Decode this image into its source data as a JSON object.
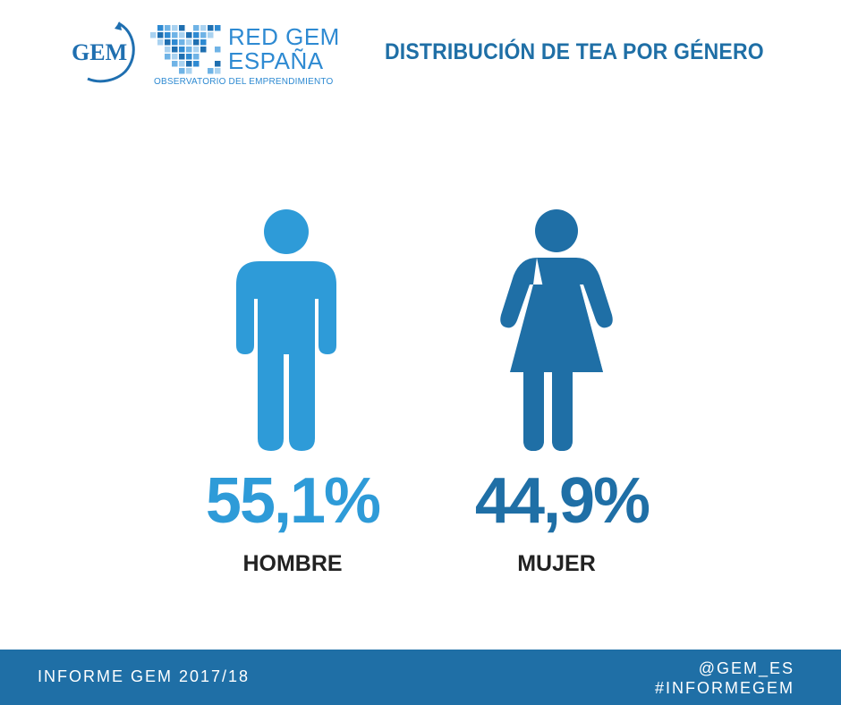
{
  "header": {
    "gem_logo_text": "GEM",
    "red_line1": "RED GEM",
    "red_line2": "ESPAÑA",
    "red_subtitle": "OBSERVATORIO DEL EMPRENDIMIENTO",
    "title": "DISTRIBUCIÓN DE TEA POR GÉNERO"
  },
  "chart_data": {
    "type": "pictogram",
    "title": "DISTRIBUCIÓN DE TEA POR GÉNERO",
    "categories": [
      "HOMBRE",
      "MUJER"
    ],
    "values": [
      55.1,
      44.9
    ],
    "value_labels": [
      "55,1%",
      "44,9%"
    ],
    "unit": "%",
    "colors": [
      "#2e9bd8",
      "#1f6fa6"
    ],
    "icons": [
      "man-icon",
      "woman-icon"
    ]
  },
  "footer": {
    "left": "INFORME GEM 2017/18",
    "right_line1": "@GEM_ES",
    "right_line2": "#INFORMEGEM"
  },
  "colors": {
    "primary_dark": "#1f6fa6",
    "primary_light": "#2e9bd8",
    "text_dark": "#222222",
    "background": "#ffffff"
  }
}
